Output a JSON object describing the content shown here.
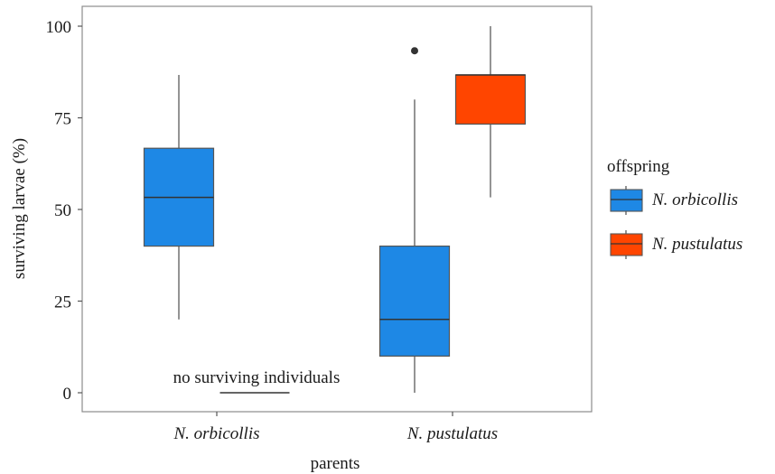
{
  "chart_data": {
    "type": "boxplot",
    "xlabel": "parents",
    "ylabel": "surviving larvae (%)",
    "ylim": [
      0,
      100
    ],
    "yticks": [
      0,
      25,
      50,
      75,
      100
    ],
    "categories": [
      "N. orbicollis",
      "N. pustulatus"
    ],
    "legend": {
      "title": "offspring",
      "position": "right"
    },
    "series": [
      {
        "name": "N. orbicollis",
        "color": "#1e88e5",
        "boxes": [
          {
            "category": "N. orbicollis",
            "min": 20,
            "q1": 40,
            "median": 53.3,
            "q3": 66.7,
            "max": 86.7,
            "outliers": []
          },
          {
            "category": "N. pustulatus",
            "min": 0,
            "q1": 10,
            "median": 20,
            "q3": 40,
            "max": 80,
            "outliers": [
              93.3
            ]
          }
        ]
      },
      {
        "name": "N. pustulatus",
        "color": "#ff4500",
        "boxes": [
          {
            "category": "N. orbicollis",
            "empty": true,
            "value": 0
          },
          {
            "category": "N. pustulatus",
            "min": 53.3,
            "q1": 73.3,
            "median": 86.7,
            "q3": 86.7,
            "max": 100,
            "outliers": []
          }
        ]
      }
    ],
    "annotations": [
      {
        "text": "no surviving individuals"
      }
    ],
    "grid": false
  }
}
